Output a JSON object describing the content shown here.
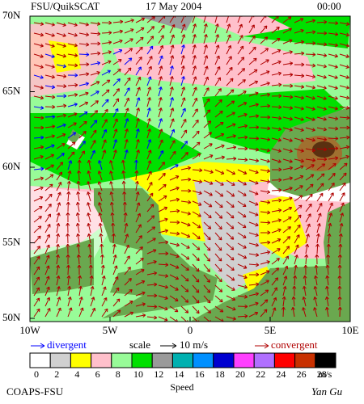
{
  "header": {
    "source": "FSU/QuikSCAT",
    "date": "17 May 2004",
    "time": "00:00"
  },
  "latitude_labels": [
    "70N",
    "65N",
    "60N",
    "55N",
    "50N"
  ],
  "longitude_labels": [
    "10W",
    "5W",
    "0",
    "5E",
    "10E"
  ],
  "legend": {
    "divergent": "divergent",
    "scale": "scale",
    "scale_value": "10 m/s",
    "convergent": "convergent"
  },
  "colorbar": {
    "colors": [
      "#ffffff",
      "#d0d0d0",
      "#ffff00",
      "#ffc0cb",
      "#98fb98",
      "#00e000",
      "#9a9a9a",
      "#00b0b0",
      "#0090ff",
      "#0000d0",
      "#ff40ff",
      "#b070ff",
      "#ff0000",
      "#c83000",
      "#000000"
    ],
    "ticks": [
      0,
      2,
      4,
      6,
      8,
      10,
      12,
      14,
      16,
      18,
      20,
      22,
      24,
      26,
      28
    ],
    "unit": "m/s",
    "label": "Speed"
  },
  "footer": {
    "credit": "COAPS-FSU",
    "author": "Yan Gu"
  }
}
